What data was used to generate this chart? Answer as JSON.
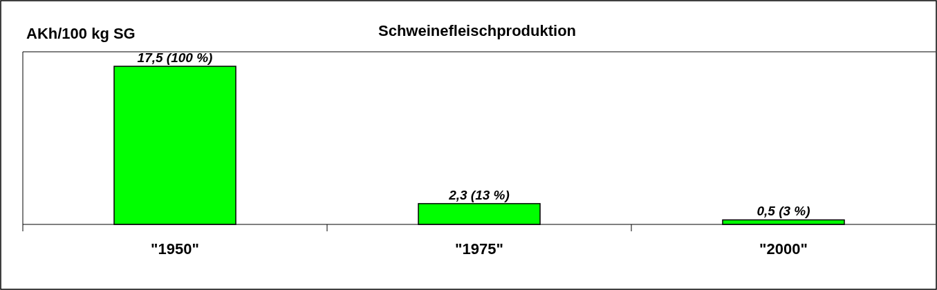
{
  "chart_data": {
    "type": "bar",
    "title": "Schweinefleischproduktion",
    "ylabel": "AKh/100 kg SG",
    "categories": [
      "\"1950\"",
      "\"1975\"",
      "\"2000\""
    ],
    "values": [
      17.5,
      2.3,
      0.5
    ],
    "value_labels": [
      "17,5 (100 %)",
      "2,3 (13 %)",
      "0,5 (3 %)"
    ],
    "color": "#00ff00"
  }
}
